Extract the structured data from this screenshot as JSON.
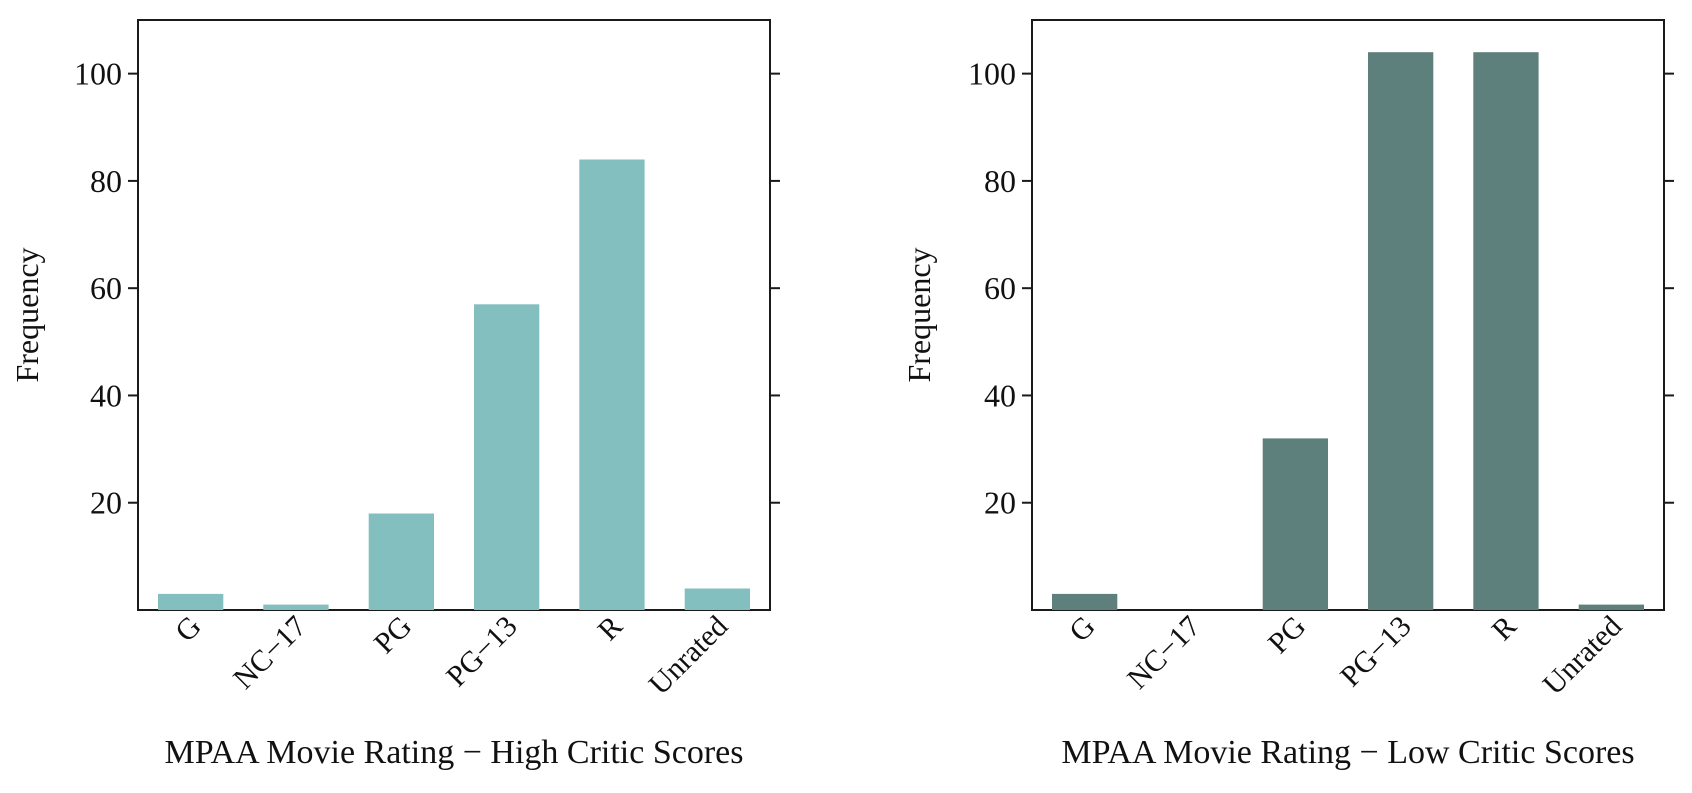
{
  "chart_data": [
    {
      "type": "bar",
      "categories": [
        "G",
        "NC−17",
        "PG",
        "PG−13",
        "R",
        "Unrated"
      ],
      "values": [
        3,
        1,
        18,
        57,
        84,
        4
      ],
      "color": "#82bfbe",
      "ylabel": "Frequency",
      "xlabel": "MPAA Movie Rating − High Critic Scores",
      "ylim": [
        0,
        110
      ],
      "yticks": [
        20,
        40,
        60,
        80,
        100
      ],
      "grid": false
    },
    {
      "type": "bar",
      "categories": [
        "G",
        "NC−17",
        "PG",
        "PG−13",
        "R",
        "Unrated"
      ],
      "values": [
        3,
        0,
        32,
        104,
        104,
        1
      ],
      "color": "#5e807d",
      "ylabel": "Frequency",
      "xlabel": "MPAA Movie Rating − Low Critic Scores",
      "ylim": [
        0,
        110
      ],
      "yticks": [
        20,
        40,
        60,
        80,
        100
      ],
      "grid": false
    }
  ]
}
